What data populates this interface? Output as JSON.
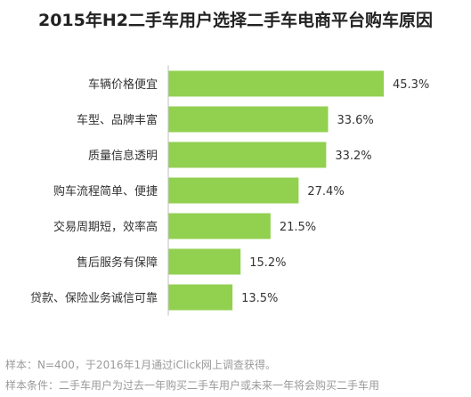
{
  "chart_data": {
    "type": "bar",
    "orientation": "horizontal",
    "title": "2015年H2二手车用户选择二手车电商平台购车原因",
    "categories": [
      "车辆价格便宜",
      "车型、品牌丰富",
      "质量信息透明",
      "购车流程简单、便捷",
      "交易周期短，效率高",
      "售后服务有保障",
      "贷款、保险业务诚信可靠"
    ],
    "values": [
      45.3,
      33.6,
      33.2,
      27.4,
      21.5,
      15.2,
      13.5
    ],
    "value_labels": [
      "45.3%",
      "33.6%",
      "33.2%",
      "27.4%",
      "21.5%",
      "15.2%",
      "13.5%"
    ],
    "xlim": [
      0,
      45.3
    ],
    "grid": false,
    "legend": "none",
    "colors": {
      "bar": "#92d050",
      "axis": "#bfbfbf",
      "text": "#333333"
    }
  },
  "notes": [
    "样本：N=400，于2016年1月通过iClick网上调查获得。",
    "样本条件：二手车用户为过去一年购买二手车用户或未来一年将会购买二手车用"
  ]
}
